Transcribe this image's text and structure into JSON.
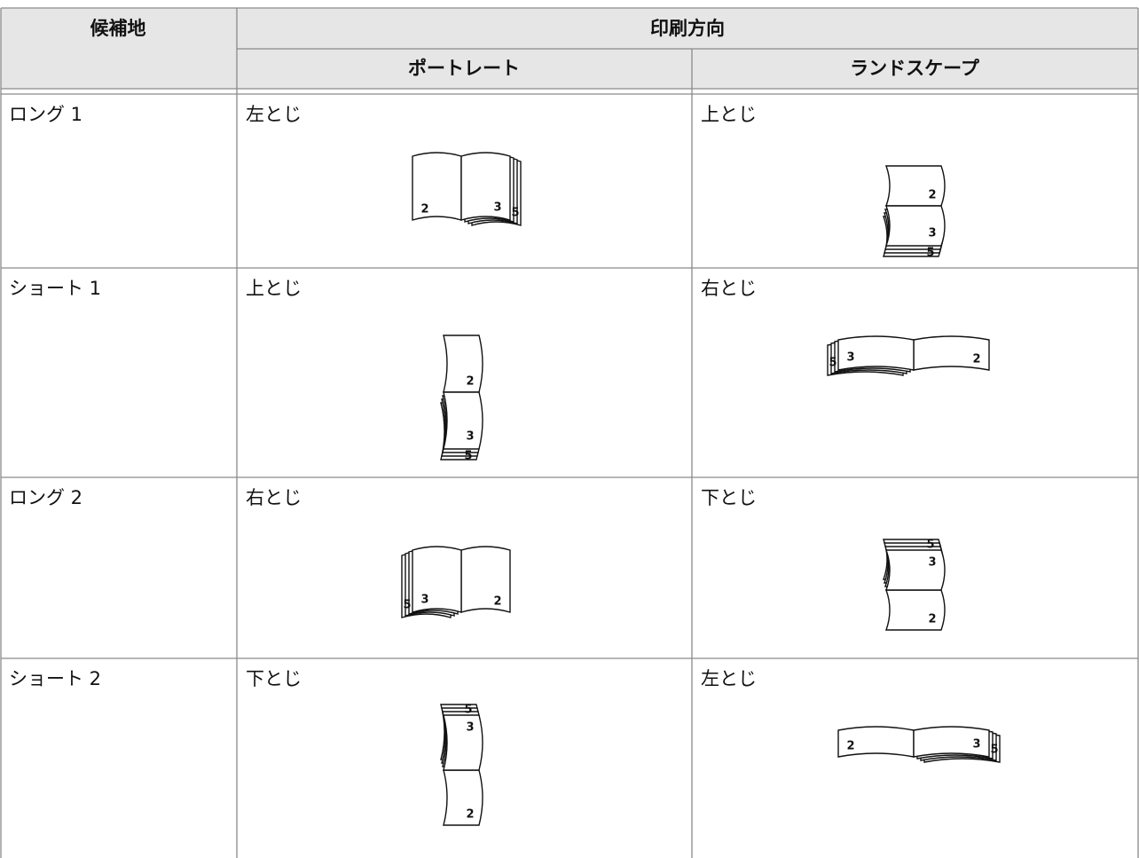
{
  "table": {
    "header": {
      "candidate": "候補地",
      "orientation": "印刷方向",
      "portrait": "ポートレート",
      "landscape": "ランドスケープ"
    },
    "rows": [
      [
        "ロング 1",
        "左とじ",
        "上とじ"
      ],
      [
        "ショート 1",
        "上とじ",
        "右とじ"
      ],
      [
        "ロング 2",
        "右とじ",
        "下とじ"
      ],
      [
        "ショート 2",
        "下とじ",
        "左とじ"
      ]
    ]
  },
  "figure_page_numbers": [
    2,
    3,
    5
  ]
}
